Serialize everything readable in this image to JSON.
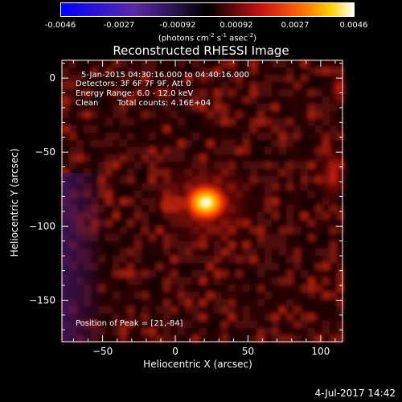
{
  "colorbar": {
    "ticks": [
      "-0.0046",
      "-0.0027",
      "-0.00092",
      "0.00092",
      "0.0027",
      "0.0046"
    ],
    "units_prefix": "(photons cm",
    "units_sup1": "-2",
    "units_mid": " s",
    "units_sup2": "-1",
    "units_mid2": " asec",
    "units_sup3": "-2",
    "units_suffix": ")"
  },
  "info": {
    "time_range": "5-Jan-2015 04:30:16.000 to 04:40:16.000",
    "detectors": "Detectors: 3F 6F 7F 9F, Att 0",
    "energy_range": "Energy Range: 6.0 - 12.0 keV",
    "clean": "Clean",
    "total_counts": "Total counts: 4.16E+04",
    "peak_position": "Position of Peak = [21,-84]"
  },
  "footer": {
    "date": "4-Jul-2017 14:42"
  },
  "chart_data": {
    "type": "heatmap",
    "title": "Reconstructed RHESSI Image",
    "xlabel": "Heliocentric X (arcsec)",
    "ylabel": "Heliocentric Y (arcsec)",
    "xlim": [
      -78,
      115
    ],
    "ylim": [
      -178,
      12
    ],
    "x_ticks": [
      -50,
      0,
      50,
      100
    ],
    "y_ticks": [
      0,
      -50,
      -100,
      -150
    ],
    "color_range": [
      -0.0046,
      0.0046
    ],
    "colormap": "blue-purple-black-red-yellow-white",
    "peak": {
      "x": 21,
      "y": -84
    }
  }
}
